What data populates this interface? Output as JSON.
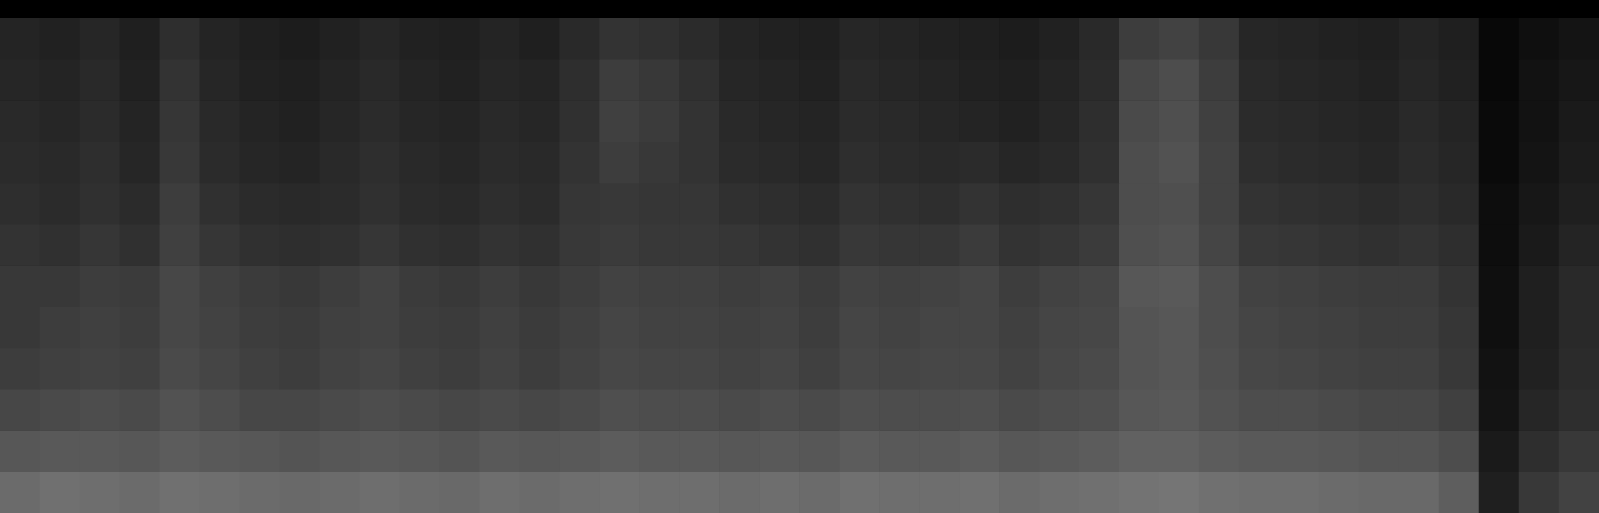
{
  "chart_data": {
    "type": "heatmap",
    "grid": false,
    "tick_labels": false,
    "categories": [
      null,
      null,
      null,
      null,
      null,
      null,
      null,
      null,
      null,
      null,
      null,
      null,
      null,
      null,
      null,
      null,
      null,
      null,
      null,
      null,
      null,
      null,
      null,
      null,
      null,
      null,
      null,
      null,
      null,
      null,
      null,
      null,
      null,
      null,
      null,
      null,
      null,
      null,
      null,
      null
    ],
    "zlim": [
      0,
      100
    ],
    "cells": [
      [
        14,
        13,
        15,
        12,
        18,
        14,
        12,
        11,
        13,
        15,
        13,
        12,
        14,
        12,
        16,
        20,
        19,
        17,
        14,
        13,
        12,
        15,
        14,
        13,
        12,
        11,
        13,
        16,
        24,
        26,
        22,
        15,
        14,
        13,
        12,
        14,
        12,
        3,
        6,
        8
      ],
      [
        15,
        14,
        16,
        13,
        20,
        15,
        13,
        12,
        14,
        16,
        14,
        13,
        15,
        14,
        18,
        24,
        22,
        19,
        15,
        14,
        13,
        16,
        15,
        14,
        13,
        12,
        14,
        17,
        28,
        30,
        24,
        16,
        15,
        14,
        13,
        15,
        13,
        3,
        7,
        9
      ],
      [
        16,
        15,
        17,
        14,
        21,
        16,
        14,
        13,
        15,
        17,
        15,
        14,
        16,
        15,
        19,
        25,
        23,
        20,
        16,
        15,
        14,
        17,
        16,
        15,
        14,
        13,
        15,
        18,
        29,
        31,
        25,
        17,
        16,
        15,
        14,
        16,
        14,
        4,
        7,
        10
      ],
      [
        17,
        16,
        18,
        15,
        22,
        17,
        15,
        14,
        16,
        18,
        16,
        15,
        17,
        16,
        20,
        24,
        22,
        20,
        17,
        16,
        15,
        18,
        17,
        16,
        17,
        15,
        16,
        19,
        30,
        32,
        26,
        18,
        17,
        16,
        15,
        17,
        15,
        4,
        8,
        11
      ],
      [
        18,
        17,
        19,
        17,
        24,
        19,
        17,
        16,
        17,
        19,
        17,
        16,
        18,
        17,
        21,
        22,
        21,
        21,
        19,
        18,
        17,
        20,
        19,
        18,
        20,
        18,
        19,
        21,
        30,
        31,
        26,
        20,
        19,
        18,
        17,
        18,
        16,
        5,
        9,
        12
      ],
      [
        20,
        19,
        21,
        19,
        25,
        21,
        19,
        18,
        19,
        21,
        19,
        18,
        20,
        19,
        22,
        23,
        22,
        22,
        21,
        20,
        19,
        22,
        21,
        21,
        23,
        20,
        21,
        23,
        31,
        32,
        27,
        22,
        21,
        20,
        19,
        20,
        18,
        5,
        10,
        14
      ],
      [
        22,
        22,
        24,
        23,
        28,
        25,
        23,
        22,
        24,
        26,
        23,
        22,
        24,
        22,
        24,
        26,
        25,
        25,
        24,
        25,
        23,
        26,
        25,
        26,
        27,
        24,
        26,
        27,
        34,
        35,
        30,
        26,
        25,
        24,
        23,
        23,
        20,
        6,
        12,
        16
      ],
      [
        22,
        24,
        25,
        24,
        28,
        26,
        24,
        23,
        25,
        26,
        24,
        23,
        25,
        23,
        25,
        27,
        26,
        26,
        25,
        26,
        24,
        27,
        26,
        27,
        27,
        25,
        27,
        28,
        33,
        34,
        30,
        27,
        26,
        25,
        24,
        24,
        21,
        6,
        12,
        16
      ],
      [
        24,
        25,
        26,
        25,
        29,
        27,
        25,
        24,
        26,
        27,
        25,
        24,
        26,
        24,
        26,
        28,
        27,
        27,
        26,
        27,
        25,
        28,
        27,
        28,
        28,
        26,
        28,
        29,
        33,
        34,
        31,
        28,
        27,
        26,
        25,
        25,
        22,
        7,
        13,
        17
      ],
      [
        28,
        29,
        30,
        29,
        32,
        30,
        28,
        28,
        29,
        30,
        29,
        28,
        29,
        28,
        29,
        31,
        30,
        30,
        29,
        30,
        29,
        31,
        30,
        30,
        31,
        29,
        30,
        31,
        34,
        35,
        32,
        30,
        30,
        29,
        28,
        28,
        25,
        8,
        15,
        18
      ],
      [
        34,
        35,
        35,
        34,
        36,
        35,
        34,
        33,
        34,
        35,
        34,
        33,
        35,
        34,
        35,
        36,
        35,
        35,
        34,
        35,
        34,
        36,
        35,
        35,
        36,
        34,
        35,
        36,
        38,
        38,
        36,
        35,
        35,
        34,
        33,
        33,
        30,
        10,
        18,
        22
      ],
      [
        42,
        44,
        43,
        42,
        44,
        43,
        42,
        41,
        42,
        43,
        42,
        41,
        43,
        42,
        43,
        44,
        43,
        43,
        42,
        43,
        42,
        44,
        43,
        43,
        44,
        42,
        43,
        44,
        45,
        46,
        44,
        43,
        43,
        42,
        41,
        41,
        37,
        12,
        22,
        26
      ]
    ]
  }
}
